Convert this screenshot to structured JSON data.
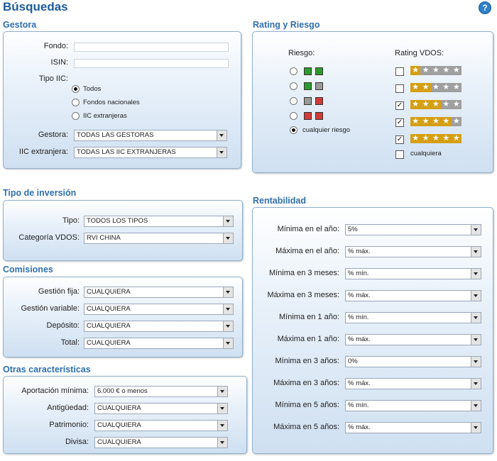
{
  "page": {
    "title": "Búsquedas",
    "help": "?"
  },
  "gestora": {
    "title": "Gestora",
    "fondo_label": "Fondo:",
    "isin_label": "ISIN:",
    "tipo_label": "Tipo IIC:",
    "tipo_options": [
      "Todos",
      "Fondos nacionales",
      "IIC extranjeras"
    ],
    "gestora_label": "Gestora:",
    "gestora_value": "TODAS LAS GESTORAS",
    "iic_label": "IIC extranjera:",
    "iic_value": "TODAS LAS IIC EXTRANJERAS"
  },
  "rating": {
    "title": "Rating y Riesgo",
    "riesgo_label": "Riesgo:",
    "riesgo_any": "cualquier riesgo",
    "vdos_label": "Rating VDOS:",
    "vdos_any": "cualquiera",
    "risk_colors": [
      [
        "#2e9a2e",
        "#2e9a2e"
      ],
      [
        "#2e9a2e",
        "#9a9a9a"
      ],
      [
        "#9a9a9a",
        "#d23a3a"
      ],
      [
        "#d23a3a",
        "#d23a3a"
      ]
    ],
    "ratings": [
      1,
      2,
      3,
      4,
      5
    ],
    "checked": [
      false,
      false,
      true,
      true,
      true
    ]
  },
  "tipo": {
    "title": "Tipo de inversión",
    "tipo_label": "Tipo:",
    "tipo_value": "TODOS LOS TIPOS",
    "cat_label": "Categoría VDOS:",
    "cat_value": "RVI CHINA"
  },
  "comisiones": {
    "title": "Comisiones",
    "rows": [
      {
        "label": "Gestión fija:",
        "value": "CUALQUIERA"
      },
      {
        "label": "Gestión variable:",
        "value": "CUALQUIERA"
      },
      {
        "label": "Depósito:",
        "value": "CUALQUIERA"
      },
      {
        "label": "Total:",
        "value": "CUALQUIERA"
      }
    ]
  },
  "otras": {
    "title": "Otras características",
    "rows": [
      {
        "label": "Aportación mínima:",
        "value": "6.000 € o menos"
      },
      {
        "label": "Antigüedad:",
        "value": "CUALQUIERA"
      },
      {
        "label": "Patrimonio:",
        "value": "CUALQUIERA"
      },
      {
        "label": "Divisa:",
        "value": "CUALQUIERA"
      }
    ]
  },
  "rentabilidad": {
    "title": "Rentabilidad",
    "rows": [
      {
        "label": "Mínima en el año:",
        "value": "5%"
      },
      {
        "label": "Máxima en el año:",
        "value": "% máx."
      },
      {
        "label": "Mínima en 3 meses:",
        "value": "% mín."
      },
      {
        "label": "Máxima en 3 meses:",
        "value": "% máx."
      },
      {
        "label": "Mínima en 1 año:",
        "value": "% mín."
      },
      {
        "label": "Máxima en 1 año:",
        "value": "% máx."
      },
      {
        "label": "Mínima en 3 años:",
        "value": "0%"
      },
      {
        "label": "Máxima en 3 años:",
        "value": "% máx."
      },
      {
        "label": "Mínima en 5 años:",
        "value": "% mín."
      },
      {
        "label": "Máxima en 5 años:",
        "value": "% máx."
      }
    ]
  }
}
